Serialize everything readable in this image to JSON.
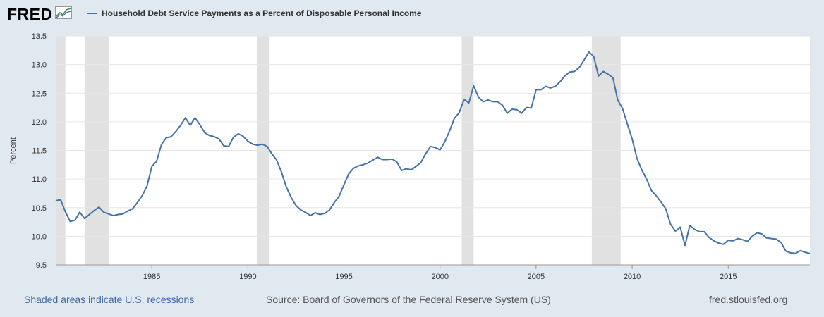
{
  "logo": {
    "text": "FRED",
    "icon": "fred-chart-logo-icon"
  },
  "footer": {
    "recessions_note": "Shaded areas indicate U.S. recessions",
    "source": "Source: Board of Governors of the Federal Reserve System (US)",
    "site": "fred.stlouisfed.org"
  },
  "colors": {
    "series": "#4572a7",
    "recession": "#e1e1e1",
    "grid": "#e6e6e6",
    "background": "#e1e9f0"
  },
  "chart_data": {
    "type": "line",
    "title": "",
    "xlabel": "",
    "ylabel": "Percent",
    "xlim": [
      1980.0,
      2019.25
    ],
    "ylim": [
      9.5,
      13.5
    ],
    "x_ticks": [
      1985,
      1990,
      1995,
      2000,
      2005,
      2010,
      2015
    ],
    "y_ticks": [
      "9.5",
      "10.0",
      "10.5",
      "11.0",
      "11.5",
      "12.0",
      "12.5",
      "13.0",
      "13.5"
    ],
    "grid": "horizontal",
    "recessions": [
      [
        1980.0,
        1980.5
      ],
      [
        1981.5,
        1982.75
      ],
      [
        1990.5,
        1991.13
      ],
      [
        2001.13,
        2001.75
      ],
      [
        2007.9,
        2009.4
      ]
    ],
    "series": [
      {
        "name": "Household Debt Service Payments as a Percent of Disposable Personal Income",
        "points": [
          [
            1980.0,
            10.62
          ],
          [
            1980.25,
            10.64
          ],
          [
            1980.5,
            10.43
          ],
          [
            1980.75,
            10.26
          ],
          [
            1981.0,
            10.28
          ],
          [
            1981.25,
            10.42
          ],
          [
            1981.5,
            10.31
          ],
          [
            1981.75,
            10.38
          ],
          [
            1982.0,
            10.45
          ],
          [
            1982.25,
            10.51
          ],
          [
            1982.5,
            10.42
          ],
          [
            1982.75,
            10.39
          ],
          [
            1983.0,
            10.36
          ],
          [
            1983.25,
            10.38
          ],
          [
            1983.5,
            10.39
          ],
          [
            1983.75,
            10.44
          ],
          [
            1984.0,
            10.48
          ],
          [
            1984.25,
            10.59
          ],
          [
            1984.5,
            10.71
          ],
          [
            1984.75,
            10.88
          ],
          [
            1985.0,
            11.22
          ],
          [
            1985.25,
            11.31
          ],
          [
            1985.5,
            11.6
          ],
          [
            1985.75,
            11.72
          ],
          [
            1986.0,
            11.74
          ],
          [
            1986.25,
            11.83
          ],
          [
            1986.5,
            11.94
          ],
          [
            1986.75,
            12.07
          ],
          [
            1987.0,
            11.94
          ],
          [
            1987.25,
            12.07
          ],
          [
            1987.5,
            11.95
          ],
          [
            1987.75,
            11.81
          ],
          [
            1988.0,
            11.76
          ],
          [
            1988.25,
            11.74
          ],
          [
            1988.5,
            11.7
          ],
          [
            1988.75,
            11.58
          ],
          [
            1989.0,
            11.57
          ],
          [
            1989.25,
            11.73
          ],
          [
            1989.5,
            11.79
          ],
          [
            1989.75,
            11.75
          ],
          [
            1990.0,
            11.66
          ],
          [
            1990.25,
            11.61
          ],
          [
            1990.5,
            11.59
          ],
          [
            1990.75,
            11.61
          ],
          [
            1991.0,
            11.57
          ],
          [
            1991.25,
            11.44
          ],
          [
            1991.5,
            11.33
          ],
          [
            1991.75,
            11.12
          ],
          [
            1992.0,
            10.86
          ],
          [
            1992.25,
            10.68
          ],
          [
            1992.5,
            10.54
          ],
          [
            1992.75,
            10.46
          ],
          [
            1993.0,
            10.42
          ],
          [
            1993.25,
            10.36
          ],
          [
            1993.5,
            10.41
          ],
          [
            1993.75,
            10.38
          ],
          [
            1994.0,
            10.4
          ],
          [
            1994.25,
            10.46
          ],
          [
            1994.5,
            10.59
          ],
          [
            1994.75,
            10.7
          ],
          [
            1995.0,
            10.9
          ],
          [
            1995.25,
            11.09
          ],
          [
            1995.5,
            11.19
          ],
          [
            1995.75,
            11.23
          ],
          [
            1996.0,
            11.25
          ],
          [
            1996.25,
            11.28
          ],
          [
            1996.5,
            11.33
          ],
          [
            1996.75,
            11.38
          ],
          [
            1997.0,
            11.34
          ],
          [
            1997.25,
            11.34
          ],
          [
            1997.5,
            11.35
          ],
          [
            1997.75,
            11.3
          ],
          [
            1998.0,
            11.15
          ],
          [
            1998.25,
            11.18
          ],
          [
            1998.5,
            11.16
          ],
          [
            1998.75,
            11.22
          ],
          [
            1999.0,
            11.29
          ],
          [
            1999.25,
            11.44
          ],
          [
            1999.5,
            11.57
          ],
          [
            1999.75,
            11.55
          ],
          [
            2000.0,
            11.51
          ],
          [
            2000.25,
            11.65
          ],
          [
            2000.5,
            11.84
          ],
          [
            2000.75,
            12.06
          ],
          [
            2001.0,
            12.16
          ],
          [
            2001.25,
            12.39
          ],
          [
            2001.5,
            12.33
          ],
          [
            2001.75,
            12.63
          ],
          [
            2002.0,
            12.43
          ],
          [
            2002.25,
            12.35
          ],
          [
            2002.5,
            12.38
          ],
          [
            2002.75,
            12.35
          ],
          [
            2003.0,
            12.35
          ],
          [
            2003.25,
            12.29
          ],
          [
            2003.5,
            12.15
          ],
          [
            2003.75,
            12.22
          ],
          [
            2004.0,
            12.21
          ],
          [
            2004.25,
            12.15
          ],
          [
            2004.5,
            12.25
          ],
          [
            2004.75,
            12.24
          ],
          [
            2005.0,
            12.56
          ],
          [
            2005.25,
            12.56
          ],
          [
            2005.5,
            12.62
          ],
          [
            2005.75,
            12.59
          ],
          [
            2006.0,
            12.62
          ],
          [
            2006.25,
            12.7
          ],
          [
            2006.5,
            12.8
          ],
          [
            2006.75,
            12.87
          ],
          [
            2007.0,
            12.88
          ],
          [
            2007.25,
            12.95
          ],
          [
            2007.5,
            13.08
          ],
          [
            2007.75,
            13.22
          ],
          [
            2008.0,
            13.14
          ],
          [
            2008.25,
            12.8
          ],
          [
            2008.5,
            12.88
          ],
          [
            2008.75,
            12.83
          ],
          [
            2009.0,
            12.77
          ],
          [
            2009.25,
            12.38
          ],
          [
            2009.5,
            12.23
          ],
          [
            2009.75,
            11.96
          ],
          [
            2010.0,
            11.7
          ],
          [
            2010.25,
            11.36
          ],
          [
            2010.5,
            11.16
          ],
          [
            2010.75,
            11.0
          ],
          [
            2011.0,
            10.8
          ],
          [
            2011.25,
            10.71
          ],
          [
            2011.5,
            10.6
          ],
          [
            2011.75,
            10.48
          ],
          [
            2012.0,
            10.21
          ],
          [
            2012.25,
            10.09
          ],
          [
            2012.5,
            10.16
          ],
          [
            2012.75,
            9.84
          ],
          [
            2013.0,
            10.19
          ],
          [
            2013.25,
            10.12
          ],
          [
            2013.5,
            10.08
          ],
          [
            2013.75,
            10.08
          ],
          [
            2014.0,
            9.98
          ],
          [
            2014.25,
            9.92
          ],
          [
            2014.5,
            9.88
          ],
          [
            2014.75,
            9.86
          ],
          [
            2015.0,
            9.93
          ],
          [
            2015.25,
            9.92
          ],
          [
            2015.5,
            9.96
          ],
          [
            2015.75,
            9.94
          ],
          [
            2016.0,
            9.91
          ],
          [
            2016.25,
            10.0
          ],
          [
            2016.5,
            10.06
          ],
          [
            2016.75,
            10.04
          ],
          [
            2017.0,
            9.97
          ],
          [
            2017.25,
            9.96
          ],
          [
            2017.5,
            9.95
          ],
          [
            2017.75,
            9.89
          ],
          [
            2018.0,
            9.74
          ],
          [
            2018.25,
            9.71
          ],
          [
            2018.5,
            9.7
          ],
          [
            2018.75,
            9.75
          ],
          [
            2019.0,
            9.72
          ],
          [
            2019.25,
            9.7
          ]
        ]
      }
    ]
  }
}
